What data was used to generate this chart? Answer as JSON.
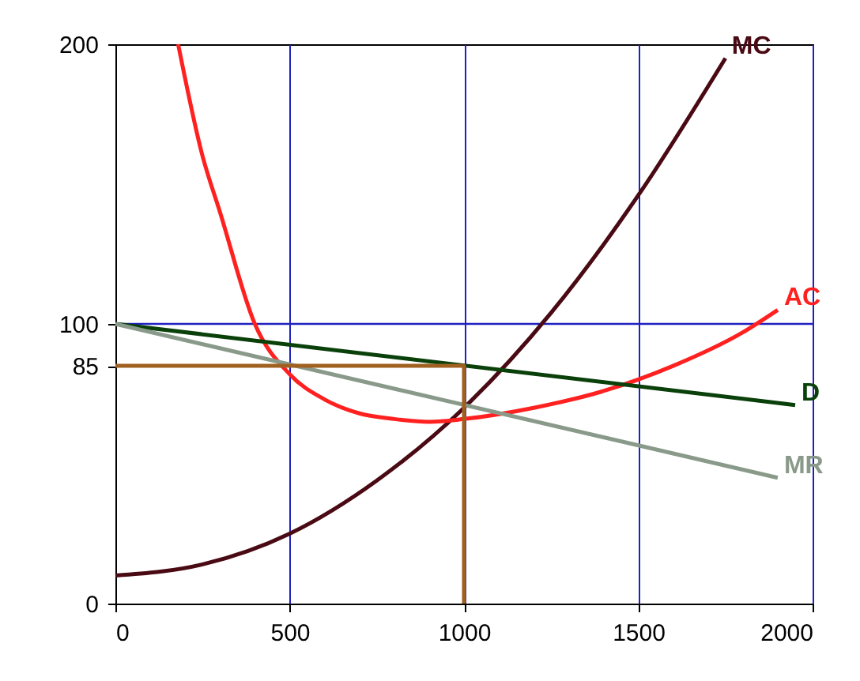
{
  "chart_data": {
    "type": "line",
    "xlim": [
      0,
      2000
    ],
    "xticks": [
      0,
      500,
      1000,
      1500,
      2000
    ],
    "ylim": [
      0,
      200
    ],
    "yticks": [
      0,
      85,
      100,
      200
    ],
    "grid": "x",
    "ref_lines": [
      {
        "axis": "y",
        "value": 100,
        "color": "#2020c0"
      }
    ],
    "series": [
      {
        "name": "MC",
        "color": "#4a0a14",
        "x": [
          0,
          250,
          500,
          750,
          1000,
          1250,
          1500,
          1750
        ],
        "values": [
          10,
          14,
          25,
          44,
          70,
          104,
          146,
          195
        ]
      },
      {
        "name": "AC",
        "color": "#ff2020",
        "x": [
          180,
          250,
          300,
          400,
          500,
          600,
          700,
          800,
          900,
          1000,
          1200,
          1400,
          1600,
          1800,
          1900
        ],
        "values": [
          200,
          160,
          140,
          100,
          82,
          73,
          68,
          66,
          65,
          66,
          70,
          76,
          85,
          97,
          105
        ]
      },
      {
        "name": "D",
        "color": "#0a400a",
        "x": [
          0,
          1950
        ],
        "values": [
          100,
          71
        ]
      },
      {
        "name": "MR",
        "color": "#8a9a8a",
        "x": [
          0,
          1900
        ],
        "values": [
          100,
          45
        ]
      },
      {
        "color": "#a06020",
        "x": [
          0,
          1000,
          1000
        ],
        "values": [
          85,
          85,
          0
        ]
      }
    ]
  }
}
